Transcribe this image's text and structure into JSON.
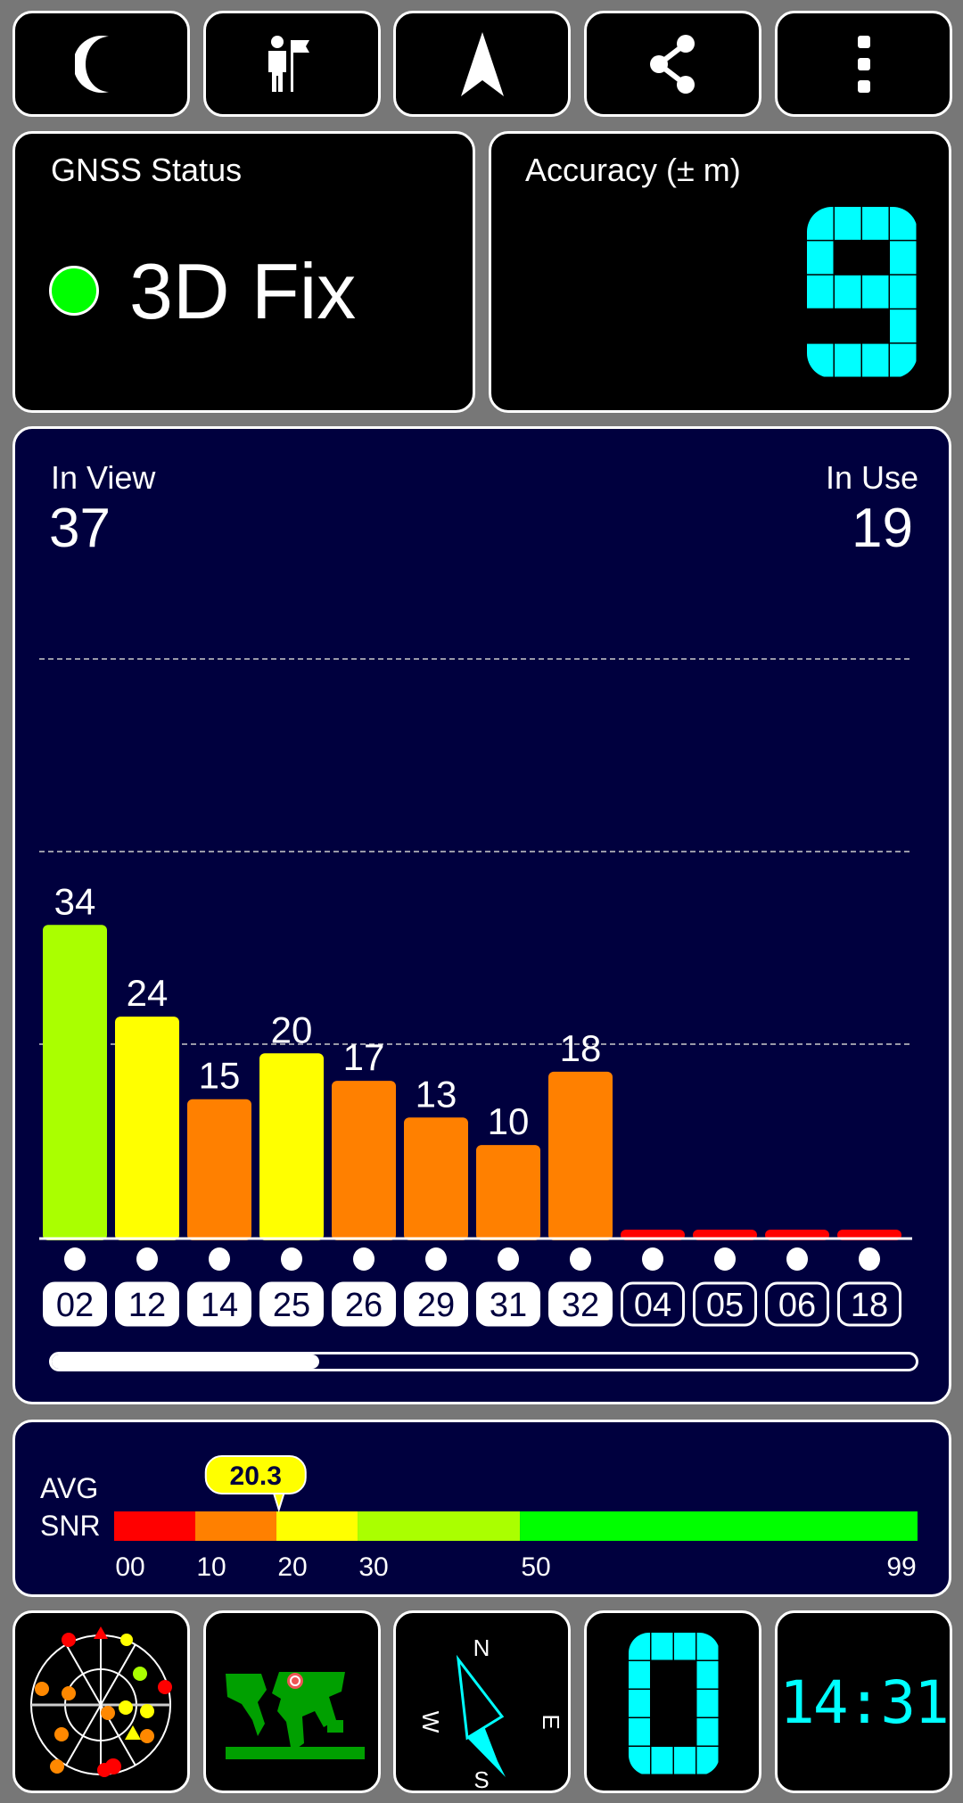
{
  "toolbar": {
    "buttons": [
      {
        "icon": "moon-icon",
        "action": "night-mode"
      },
      {
        "icon": "person-flag-icon",
        "action": "waypoint"
      },
      {
        "icon": "navigation-arrow-icon",
        "action": "navigate"
      },
      {
        "icon": "share-icon",
        "action": "share"
      },
      {
        "icon": "more-vertical-icon",
        "action": "menu"
      }
    ]
  },
  "gnss_status": {
    "title": "GNSS Status",
    "value": "3D Fix",
    "indicator_color": "#00ff00"
  },
  "accuracy": {
    "title": "Accuracy (± m)",
    "value": "9",
    "digit_color": "#00ffff"
  },
  "satellites": {
    "in_view_label": "In View",
    "in_view": "37",
    "in_use_label": "In Use",
    "in_use": "19",
    "scroll_fraction": 0.31
  },
  "chart_data": {
    "type": "bar",
    "categories": [
      "02",
      "12",
      "14",
      "25",
      "26",
      "29",
      "31",
      "32",
      "04",
      "05",
      "06",
      "18"
    ],
    "values": [
      34,
      24,
      15,
      20,
      17,
      13,
      10,
      18,
      0,
      0,
      0,
      0
    ],
    "in_use": [
      true,
      true,
      true,
      true,
      true,
      true,
      true,
      true,
      false,
      false,
      false,
      false
    ],
    "ylim": [
      0,
      84
    ],
    "grid": true,
    "color_scale": [
      {
        "min": 0,
        "max": 10,
        "color": "#ff0000"
      },
      {
        "min": 10,
        "max": 20,
        "color": "#ff8000"
      },
      {
        "min": 20,
        "max": 30,
        "color": "#ffff00"
      },
      {
        "min": 30,
        "max": 50,
        "color": "#aaff00"
      },
      {
        "min": 50,
        "max": 99,
        "color": "#00ff00"
      }
    ]
  },
  "snr": {
    "label_line1": "AVG",
    "label_line2": "SNR",
    "avg_value": "20.3",
    "avg": 20.3,
    "ticks": [
      "00",
      "10",
      "20",
      "30",
      "50",
      "99"
    ],
    "tick_values": [
      0,
      10,
      20,
      30,
      50,
      99
    ]
  },
  "bottom": {
    "skyplot_icon": "skyplot-icon",
    "map_icon": "world-map-icon",
    "compass": {
      "n": "N",
      "e": "E",
      "s": "S",
      "w": "W"
    },
    "digit": "0",
    "clock": "14:31"
  }
}
